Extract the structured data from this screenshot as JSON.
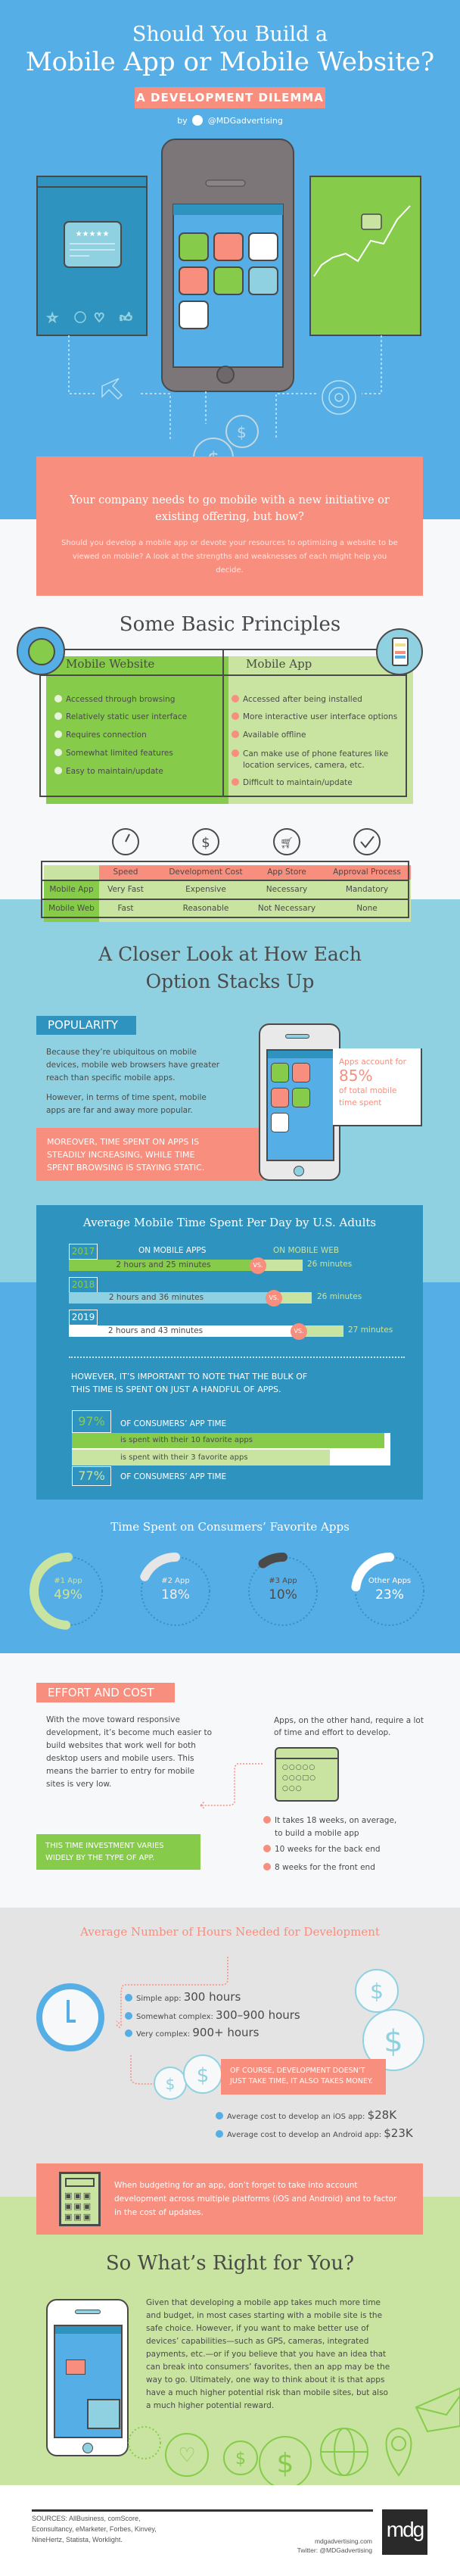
{
  "colors": {
    "hero_blue": "#56aee6",
    "salmon": "#f88e7d",
    "green": "#86cc4a",
    "light_green": "#c8e4a0",
    "teal": "#8fd1e0",
    "dark_blue": "#2f93c0",
    "gray": "#e4e4e4",
    "text": "#4a4a4a"
  },
  "header": {
    "title_line1": "Should You Build a",
    "title_line2": "Mobile App or Mobile Website?",
    "subtitle": "A DEVELOPMENT DILEMMA",
    "by": "by",
    "twitter_icon": "twitter-bird-icon",
    "handle": "@MDGadvertising"
  },
  "intro": {
    "headline": "Your company needs to go mobile with a new initiative or existing offering, but how?",
    "body": "Should you develop a mobile app or devote your resources to optimizing a website to be viewed on mobile? A look at the strengths and weaknesses of each might help you decide."
  },
  "principles": {
    "title": "Some Basic Principles",
    "website": {
      "heading": "Mobile Website",
      "icon": "globe-icon",
      "items": [
        "Accessed through browsing",
        "Relatively static user interface",
        "Requires connection",
        "Somewhat limited features",
        "Easy to maintain/update"
      ]
    },
    "app": {
      "heading": "Mobile App",
      "icon": "phone-icon",
      "items": [
        "Accessed after being installed",
        "More interactive user interface options",
        "Available offline",
        "Can make use of phone features like location services, camera, etc.",
        "Difficult to maintain/update"
      ]
    }
  },
  "comparison": {
    "columns": [
      {
        "label": "Speed",
        "icon": "speedometer-icon"
      },
      {
        "label": "Development Cost",
        "icon": "dollar-icon"
      },
      {
        "label": "App Store",
        "icon": "cart-icon"
      },
      {
        "label": "Approval Process",
        "icon": "checkmark-icon"
      }
    ],
    "rows": [
      {
        "label": "Mobile App",
        "values": [
          "Very Fast",
          "Expensive",
          "Necessary",
          "Mandatory"
        ]
      },
      {
        "label": "Mobile Web",
        "values": [
          "Fast",
          "Reasonable",
          "Not Necessary",
          "None"
        ]
      }
    ]
  },
  "closer": {
    "title_line1": "A Closer Look at How Each",
    "title_line2": "Option Stacks Up"
  },
  "popularity": {
    "tag": "POPULARITY",
    "p1": "Because they’re ubiquitous on mobile devices, mobile web browsers have greater reach than specific mobile apps.",
    "p2": "However, in terms of time spent, mobile apps are far and away more popular.",
    "callout": "MOREOVER, TIME SPENT ON APPS IS STEADILY INCREASING, WHILE TIME SPENT BROWSING IS STAYING STATIC.",
    "stat_pre": "Apps account for",
    "stat_value": "85%",
    "stat_post": "of total mobile time spent"
  },
  "time_spent": {
    "title": "Average Mobile Time Spent Per Day by U.S. Adults",
    "apps_label": "ON MOBILE APPS",
    "web_label": "ON MOBILE WEB",
    "vs": "VS.",
    "years": [
      {
        "year": "2017",
        "apps": "2 hours and 25 minutes",
        "web": "26 minutes",
        "apps_minutes": 145,
        "web_minutes": 26
      },
      {
        "year": "2018",
        "apps": "2 hours and 36 minutes",
        "web": "26 minutes",
        "apps_minutes": 156,
        "web_minutes": 26
      },
      {
        "year": "2019",
        "apps": "2 hours and 43 minutes",
        "web": "27 minutes",
        "apps_minutes": 163,
        "web_minutes": 27
      }
    ],
    "note": "HOWEVER, IT’S IMPORTANT TO NOTE THAT THE BULK OF THIS TIME IS SPENT ON JUST A HANDFUL OF APPS.",
    "share": [
      {
        "pct": "97%",
        "label": "OF CONSUMERS’ APP TIME",
        "bar": "is spent with their 10 favorite apps",
        "value": 97
      },
      {
        "pct": "77%",
        "label": "OF CONSUMERS’ APP TIME",
        "bar": "is spent with their 3 favorite apps",
        "value": 77
      }
    ]
  },
  "favorites": {
    "title": "Time Spent on Consumers’ Favorite Apps",
    "items": [
      {
        "label": "#1 App",
        "pct": "49%",
        "value": 49,
        "color": "#c8e4a0"
      },
      {
        "label": "#2 App",
        "pct": "18%",
        "value": 18,
        "color": "#e6e6e6"
      },
      {
        "label": "#3 App",
        "pct": "10%",
        "value": 10,
        "color": "#4a4a4a"
      },
      {
        "label": "Other Apps",
        "pct": "23%",
        "value": 23,
        "color": "#ffffff"
      }
    ]
  },
  "effort": {
    "tag": "EFFORT AND COST",
    "left": "With the move toward responsive development, it’s become much easier to build websites that work well for both desktop users and mobile users. This means the barrier to entry for mobile sites is very low.",
    "right": "Apps, on the other hand, require a lot of time and effort to develop.",
    "callout": "THIS TIME INVESTMENT VARIES WIDELY BY THE TYPE OF APP.",
    "bullets": [
      "It takes 18 weeks, on average, to build a mobile app",
      "10 weeks for the back end",
      "8 weeks for the front end"
    ]
  },
  "hours": {
    "title": "Average Number of Hours Needed for Development",
    "items": [
      {
        "label": "Simple app:",
        "value": "300 hours"
      },
      {
        "label": "Somewhat complex:",
        "value": "300–900 hours"
      },
      {
        "label": "Very complex:",
        "value": "900+ hours"
      }
    ],
    "money_note": "OF COURSE, DEVELOPMENT DOESN’T JUST TAKE TIME, IT ALSO TAKES MONEY.",
    "costs": [
      {
        "label": "Average cost to develop an iOS app:",
        "value": "$28K"
      },
      {
        "label": "Average cost to develop an Android app:",
        "value": "$23K"
      }
    ]
  },
  "budget": {
    "text": "When budgeting for an app, don’t forget to take into account development across multiple platforms (iOS and Android) and to factor in the cost of updates."
  },
  "conclusion": {
    "title": "So What’s Right for You?",
    "body": "Given that developing a mobile app takes much more time and budget, in most cases starting with a mobile site is the safe choice. However, if you want to make better use of devices’ capabilities—such as GPS, cameras, integrated payments, etc.—or if you believe that you have an idea that can break into consumers’ favorites, then an app may be the way to go. Ultimately, one way to think about it is that apps have a much higher potential risk than mobile sites, but also a much higher potential reward."
  },
  "footer": {
    "sources": "SOURCES: AllBusiness, comScore, Econsultancy, eMarketer, Forbes, Kinvey, NineHertz, Statista, Worklight.",
    "website": "mdgadvertising.com",
    "twitter": "Twitter: @MDGadvertising",
    "logo": "mdg"
  }
}
